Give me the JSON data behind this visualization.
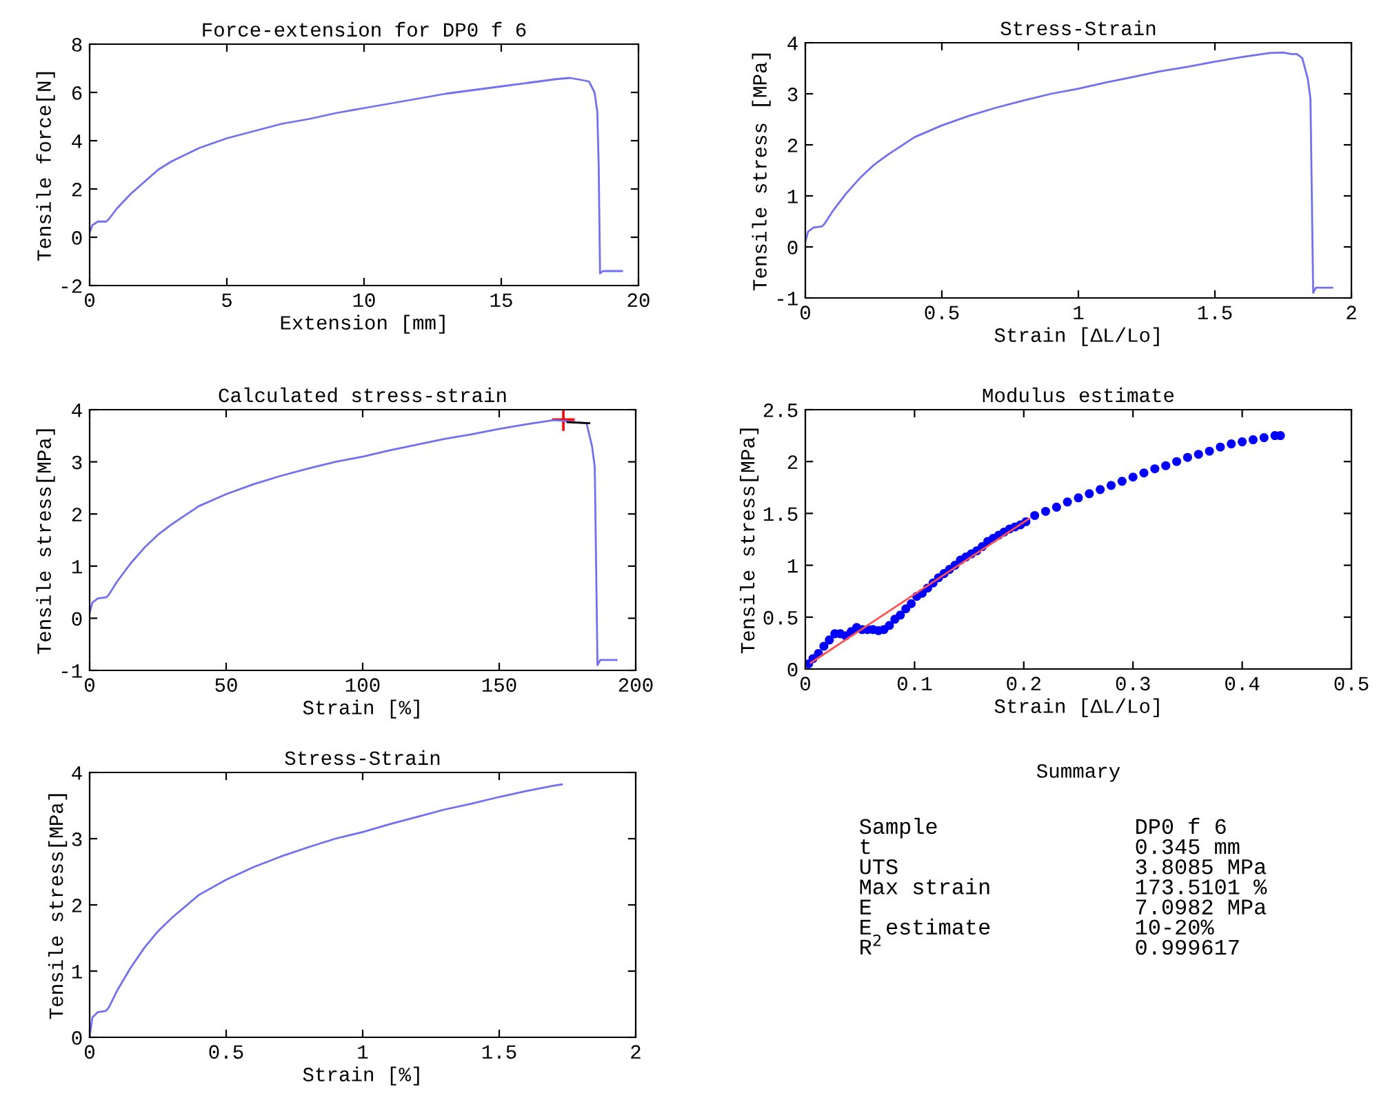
{
  "chart_data": [
    {
      "type": "line",
      "title": "Force-extension for DP0 f 6",
      "xlabel": "Extension [mm]",
      "ylabel": "Tensile force[N]",
      "xlim": [
        0,
        20
      ],
      "xticks": [
        0,
        5,
        10,
        15,
        20
      ],
      "ylim": [
        -2,
        8
      ],
      "yticks": [
        -2,
        0,
        2,
        4,
        6,
        8
      ],
      "grid": false,
      "legend": false,
      "series": [
        {
          "color": "#7070f0",
          "x": [
            0,
            0.1,
            0.3,
            0.6,
            0.7,
            1,
            1.5,
            2,
            2.5,
            3,
            4,
            5,
            6,
            7,
            8,
            9,
            10,
            11,
            12,
            13,
            14,
            15,
            16,
            17,
            17.5,
            18,
            18.2,
            18.4,
            18.5,
            18.55,
            18.6,
            18.7,
            19.4
          ],
          "values": [
            0.2,
            0.5,
            0.65,
            0.65,
            0.75,
            1.2,
            1.8,
            2.3,
            2.8,
            3.15,
            3.7,
            4.1,
            4.4,
            4.7,
            4.9,
            5.15,
            5.35,
            5.55,
            5.75,
            5.95,
            6.1,
            6.25,
            6.4,
            6.55,
            6.6,
            6.5,
            6.45,
            6.0,
            5.2,
            3,
            -1.5,
            -1.4,
            -1.4
          ]
        }
      ]
    },
    {
      "type": "line",
      "title": "Stress-Strain",
      "xlabel": "Strain [ΔL/Lo]",
      "ylabel": "Tensile stress [MPa]",
      "xlim": [
        0,
        2
      ],
      "xticks": [
        0,
        0.5,
        1,
        1.5,
        2
      ],
      "ylim": [
        -1,
        4
      ],
      "yticks": [
        -1,
        0,
        1,
        2,
        3,
        4
      ],
      "grid": false,
      "legend": false,
      "series": [
        {
          "color": "#7070f0",
          "x": [
            0,
            0.01,
            0.03,
            0.06,
            0.07,
            0.1,
            0.15,
            0.2,
            0.25,
            0.3,
            0.4,
            0.5,
            0.6,
            0.7,
            0.8,
            0.9,
            1.0,
            1.1,
            1.2,
            1.3,
            1.4,
            1.5,
            1.6,
            1.7,
            1.75,
            1.78,
            1.8,
            1.82,
            1.84,
            1.85,
            1.86,
            1.87,
            1.93
          ],
          "values": [
            0.1,
            0.3,
            0.38,
            0.4,
            0.45,
            0.7,
            1.05,
            1.35,
            1.6,
            1.8,
            2.15,
            2.38,
            2.57,
            2.73,
            2.87,
            3.0,
            3.1,
            3.22,
            3.33,
            3.44,
            3.53,
            3.63,
            3.72,
            3.8,
            3.81,
            3.78,
            3.78,
            3.7,
            3.3,
            2.9,
            -0.9,
            -0.8,
            -0.8
          ]
        }
      ]
    },
    {
      "type": "line",
      "title": "Calculated stress-strain",
      "xlabel": "Strain [%]",
      "ylabel": "Tensile stress[MPa]",
      "xlim": [
        0,
        200
      ],
      "xticks": [
        0,
        50,
        100,
        150,
        200
      ],
      "ylim": [
        -1,
        4
      ],
      "yticks": [
        -1,
        0,
        1,
        2,
        3,
        4
      ],
      "grid": false,
      "legend": false,
      "series": [
        {
          "color": "#7070f0",
          "x": [
            0,
            1,
            3,
            6,
            7,
            10,
            15,
            20,
            25,
            30,
            40,
            50,
            60,
            70,
            80,
            90,
            100,
            110,
            120,
            130,
            140,
            150,
            160,
            170,
            175,
            178,
            180,
            182,
            184,
            185,
            186,
            187,
            193
          ],
          "values": [
            0.1,
            0.3,
            0.38,
            0.4,
            0.45,
            0.7,
            1.05,
            1.35,
            1.6,
            1.8,
            2.15,
            2.38,
            2.57,
            2.73,
            2.87,
            3.0,
            3.1,
            3.22,
            3.33,
            3.44,
            3.53,
            3.63,
            3.72,
            3.8,
            3.78,
            3.76,
            3.75,
            3.74,
            3.3,
            2.9,
            -0.9,
            -0.8,
            -0.8
          ]
        },
        {
          "color": "#000000",
          "x": [
            183,
            175
          ],
          "values": [
            3.74,
            3.76
          ]
        },
        {
          "type": "scatter",
          "marker": "cross",
          "color": "#ff0000",
          "x": [
            173.5
          ],
          "values": [
            3.81
          ]
        }
      ]
    },
    {
      "type": "scatter",
      "title": "Modulus estimate",
      "xlabel": "Strain [ΔL/Lo]",
      "ylabel": "Tensile stress[MPa]",
      "xlim": [
        0,
        0.5
      ],
      "xticks": [
        0,
        0.1,
        0.2,
        0.3,
        0.4,
        0.5
      ],
      "ylim": [
        0,
        2.5
      ],
      "yticks": [
        0,
        0.5,
        1,
        1.5,
        2,
        2.5
      ],
      "grid": false,
      "legend": false,
      "series": [
        {
          "color": "#0000ff",
          "marker": "circle",
          "x": [
            0.003,
            0.007,
            0.012,
            0.017,
            0.022,
            0.027,
            0.032,
            0.037,
            0.042,
            0.047,
            0.052,
            0.057,
            0.062,
            0.067,
            0.072,
            0.077,
            0.082,
            0.087,
            0.092,
            0.097,
            0.102,
            0.107,
            0.112,
            0.117,
            0.122,
            0.127,
            0.132,
            0.137,
            0.142,
            0.147,
            0.152,
            0.157,
            0.162,
            0.167,
            0.172,
            0.177,
            0.182,
            0.187,
            0.192,
            0.197,
            0.202,
            0.21,
            0.22,
            0.23,
            0.24,
            0.25,
            0.26,
            0.27,
            0.28,
            0.29,
            0.3,
            0.31,
            0.32,
            0.33,
            0.34,
            0.35,
            0.36,
            0.37,
            0.38,
            0.39,
            0.4,
            0.41,
            0.42,
            0.43,
            0.435
          ],
          "values": [
            0.05,
            0.1,
            0.15,
            0.22,
            0.28,
            0.34,
            0.34,
            0.32,
            0.36,
            0.4,
            0.38,
            0.38,
            0.38,
            0.37,
            0.38,
            0.42,
            0.48,
            0.52,
            0.58,
            0.63,
            0.7,
            0.73,
            0.78,
            0.83,
            0.88,
            0.92,
            0.96,
            1.0,
            1.05,
            1.08,
            1.11,
            1.14,
            1.18,
            1.23,
            1.26,
            1.29,
            1.32,
            1.35,
            1.37,
            1.39,
            1.42,
            1.48,
            1.52,
            1.56,
            1.61,
            1.65,
            1.69,
            1.73,
            1.77,
            1.81,
            1.85,
            1.89,
            1.93,
            1.96,
            2.0,
            2.04,
            2.07,
            2.1,
            2.14,
            2.17,
            2.19,
            2.21,
            2.23,
            2.25,
            2.25
          ]
        },
        {
          "type": "line",
          "color": "#ff5050",
          "x": [
            0.005,
            0.205
          ],
          "values": [
            0.06,
            1.45
          ]
        }
      ]
    },
    {
      "type": "line",
      "title": "Stress-Strain",
      "xlabel": "Strain [%]",
      "ylabel": "Tensile stress[MPa]",
      "xlim": [
        0,
        2
      ],
      "xticks": [
        0,
        0.5,
        1,
        1.5,
        2
      ],
      "ylim": [
        0,
        4
      ],
      "yticks": [
        0,
        1,
        2,
        3,
        4
      ],
      "grid": false,
      "legend": false,
      "series": [
        {
          "color": "#7070f0",
          "x": [
            0,
            0.01,
            0.03,
            0.06,
            0.07,
            0.1,
            0.15,
            0.2,
            0.25,
            0.3,
            0.4,
            0.5,
            0.6,
            0.7,
            0.8,
            0.9,
            1.0,
            1.1,
            1.2,
            1.3,
            1.4,
            1.5,
            1.6,
            1.7,
            1.73
          ],
          "values": [
            0.0,
            0.3,
            0.38,
            0.4,
            0.45,
            0.7,
            1.05,
            1.35,
            1.6,
            1.8,
            2.15,
            2.38,
            2.57,
            2.73,
            2.87,
            3.0,
            3.1,
            3.22,
            3.33,
            3.44,
            3.53,
            3.63,
            3.72,
            3.8,
            3.82
          ]
        }
      ]
    },
    {
      "type": "other",
      "title": "Summary",
      "annotations": [
        "Sample",
        "DP0 f 6",
        "t",
        "0.345 mm",
        "UTS",
        "3.8085 MPa",
        "Max strain",
        "173.5101 %",
        "E",
        "7.0982 MPa",
        "E estimate",
        "10-20%",
        "R$^{2}$",
        "0.999617"
      ]
    }
  ]
}
